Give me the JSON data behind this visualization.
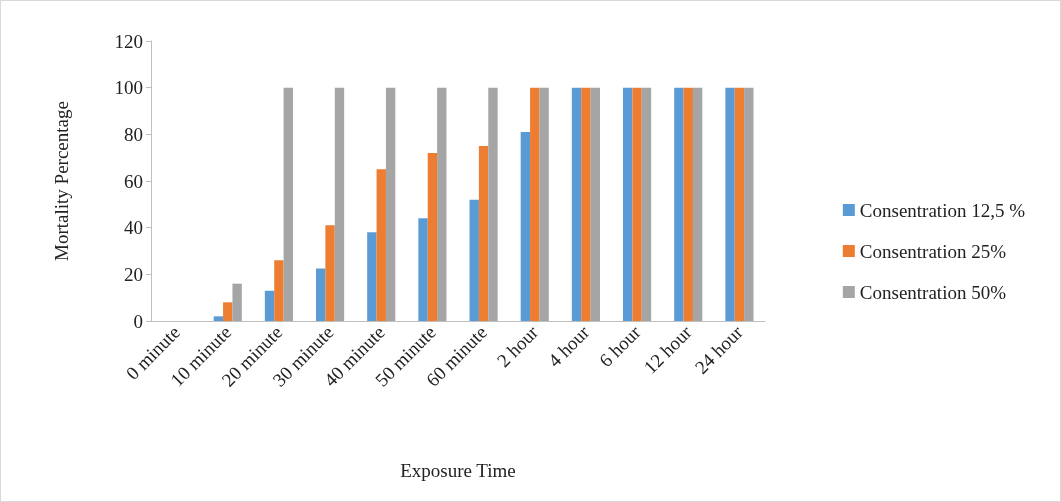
{
  "chart_data": {
    "type": "bar",
    "xlabel": "Exposure Time",
    "ylabel": "Mortality Percentage",
    "categories": [
      "0 minute",
      "10 minute",
      "20 minute",
      "30 minute",
      "40 minute",
      "50 minute",
      "60 minute",
      "2 hour",
      "4 hour",
      "6 hour",
      "12 hour",
      "24 hour"
    ],
    "series": [
      {
        "name": "Consentration 12,5 %",
        "color": "#5b9bd5",
        "values": [
          0,
          2,
          13,
          22.5,
          38,
          44,
          52,
          81,
          100,
          100,
          100,
          100
        ]
      },
      {
        "name": "Consentration 25%",
        "color": "#ed7d31",
        "values": [
          0,
          8,
          26,
          41,
          65,
          72,
          75,
          100,
          100,
          100,
          100,
          100
        ]
      },
      {
        "name": "Consentration 50%",
        "color": "#a5a5a5",
        "values": [
          0,
          16,
          100,
          100,
          100,
          100,
          100,
          100,
          100,
          100,
          100,
          100
        ]
      }
    ],
    "ylim": [
      0,
      120
    ],
    "yticks": [
      0,
      20,
      40,
      60,
      80,
      100,
      120
    ],
    "grid": false,
    "legend": "right"
  }
}
